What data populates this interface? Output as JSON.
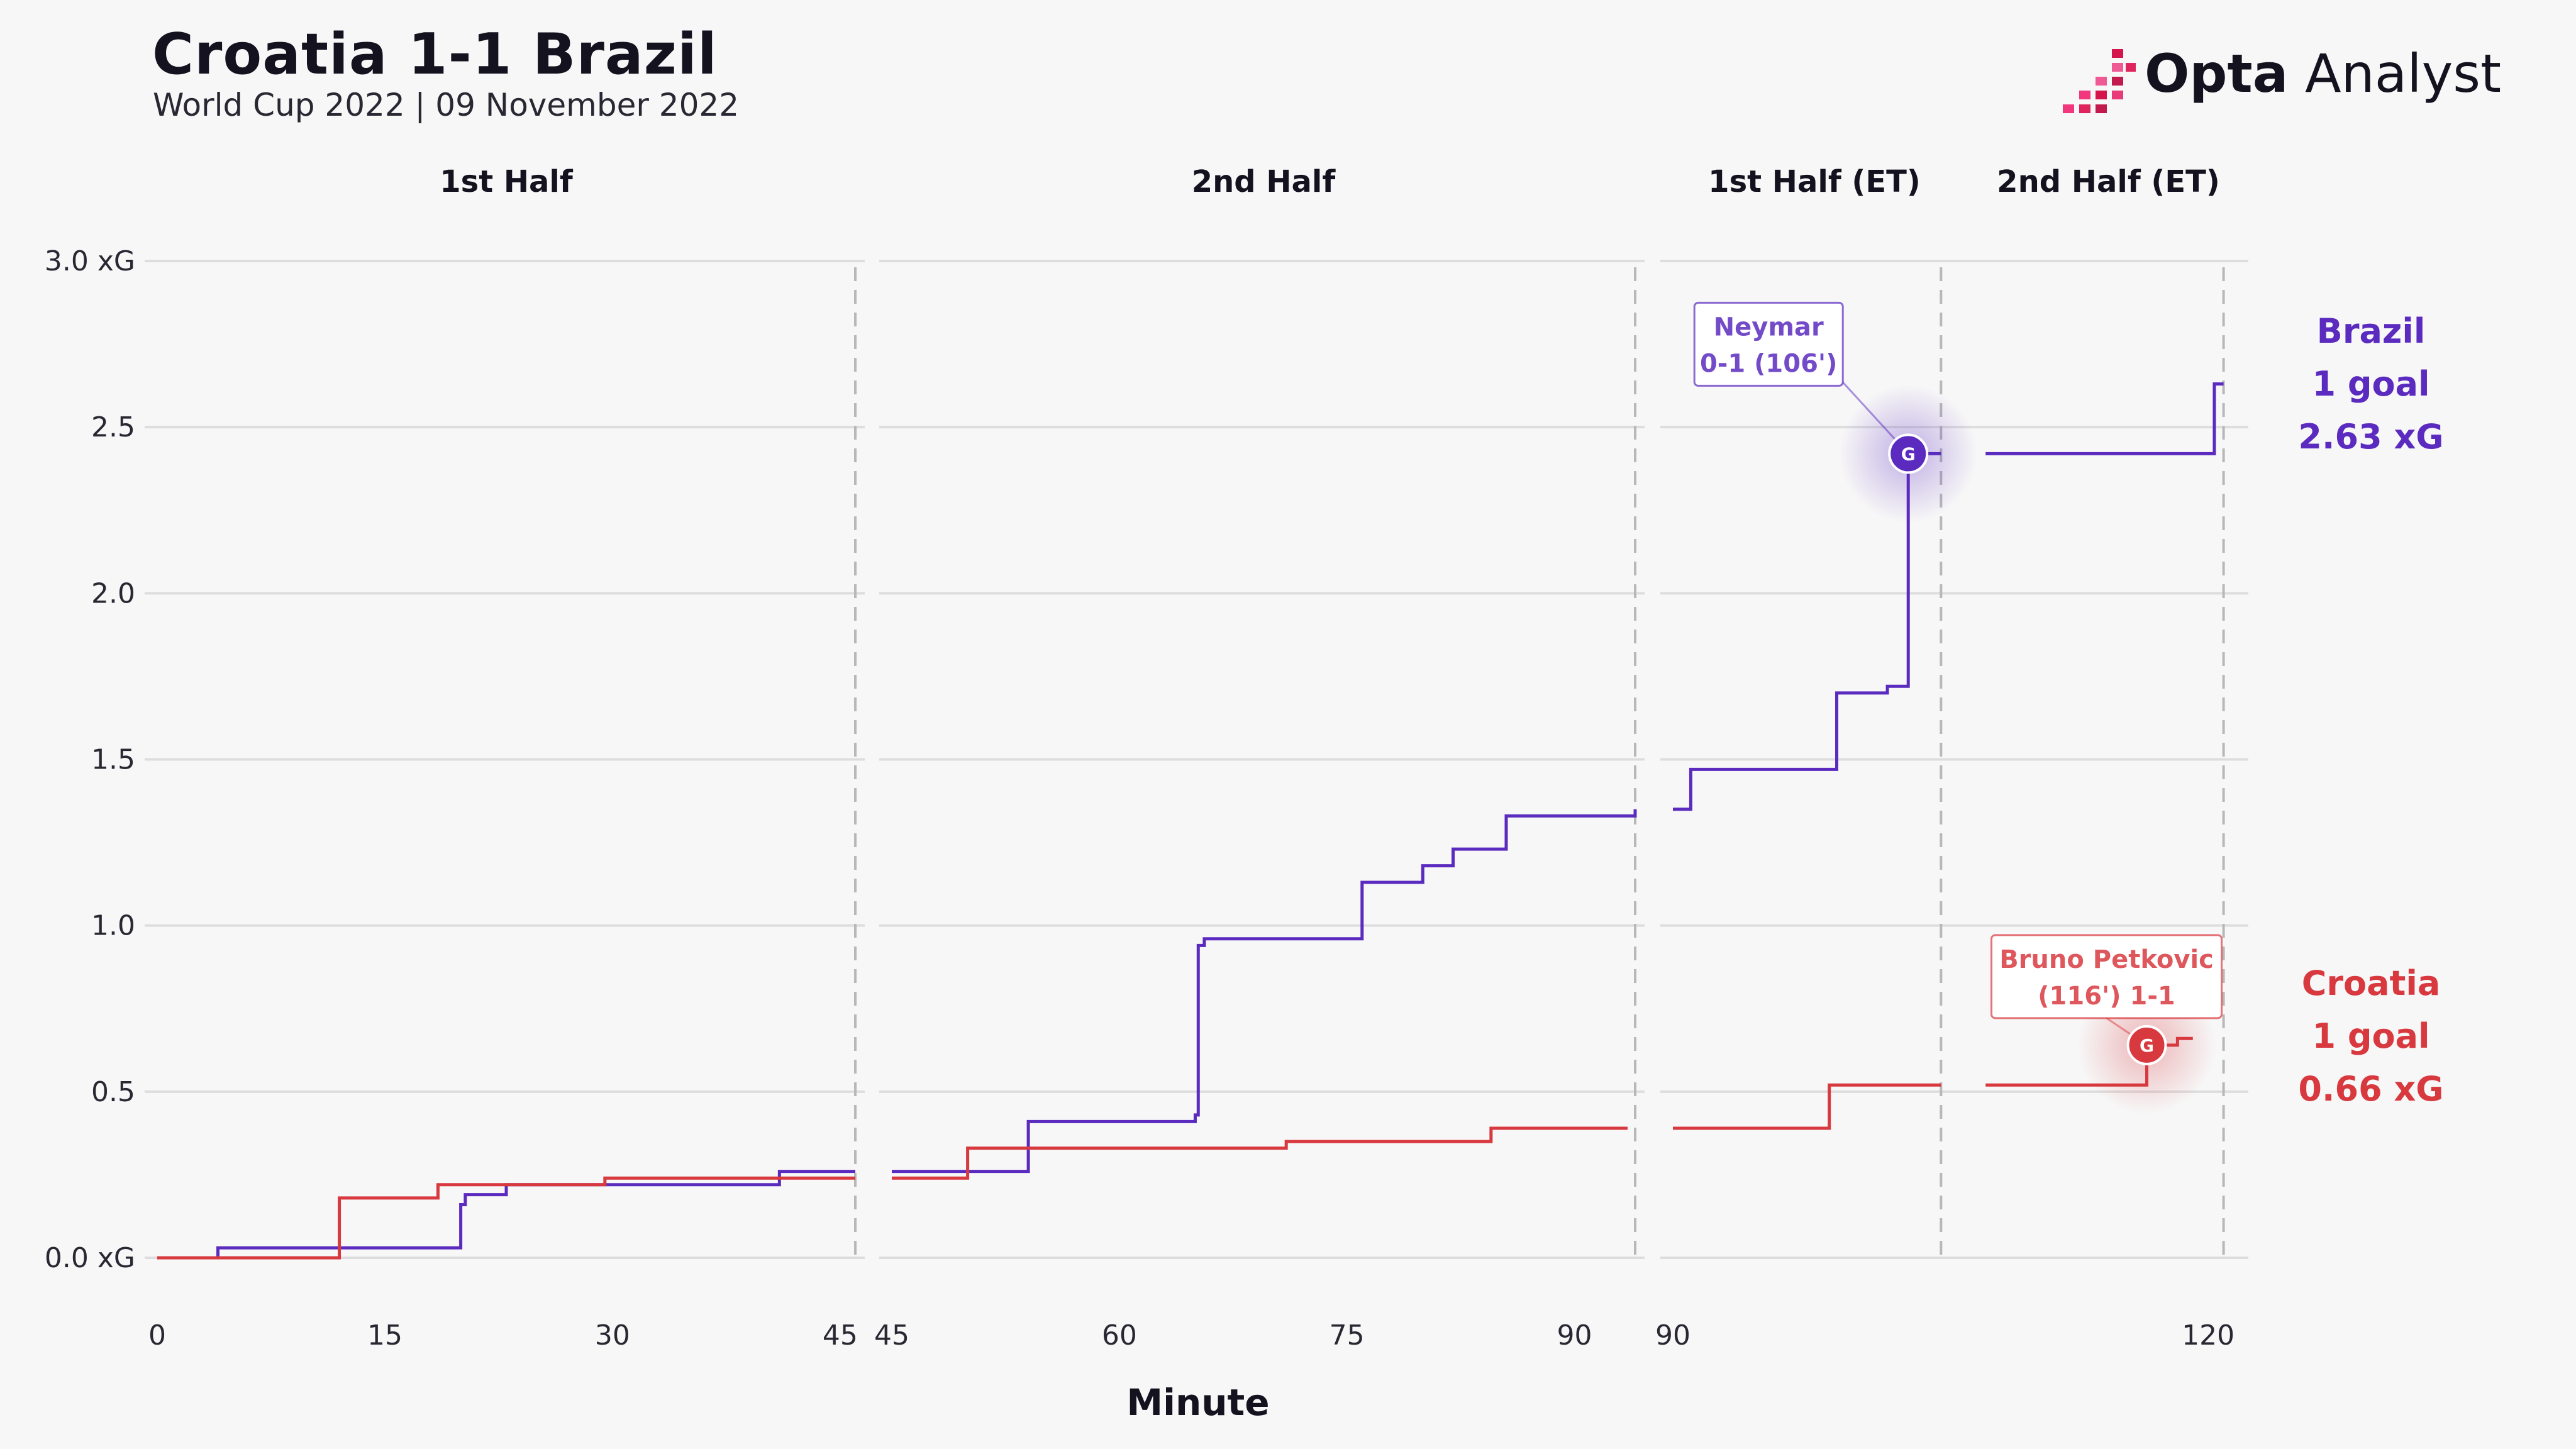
{
  "title": "Croatia 1-1 Brazil",
  "subtitle": "World Cup 2022 | 09 November 2022",
  "logo": {
    "brand": "Opta",
    "product": "Analyst"
  },
  "colors": {
    "brazil": "#5b2bc0",
    "croatia": "#d8393f",
    "grid": "#dddddd",
    "divider": "#b8b8b8"
  },
  "chart_data": {
    "type": "line",
    "subtype": "step",
    "xlabel": "Minute",
    "ylim": [
      0,
      3.0
    ],
    "y_ticks": [
      {
        "value": 0.0,
        "label": "0.0 xG"
      },
      {
        "value": 0.5,
        "label": "0.5"
      },
      {
        "value": 1.0,
        "label": "1.0"
      },
      {
        "value": 1.5,
        "label": "1.5"
      },
      {
        "value": 2.0,
        "label": "2.0"
      },
      {
        "value": 2.5,
        "label": "2.5"
      },
      {
        "value": 3.0,
        "label": "3.0 xG"
      }
    ],
    "panels": [
      {
        "id": "h1",
        "title": "1st Half",
        "xlim": [
          0,
          46
        ],
        "end_minute": 46,
        "ticks": [
          0,
          15,
          30,
          45
        ]
      },
      {
        "id": "h2",
        "title": "2nd Half",
        "xlim": [
          45,
          94
        ],
        "end_minute": 94,
        "ticks": [
          45,
          60,
          75,
          90
        ]
      },
      {
        "id": "et1",
        "title": "1st Half (ET)",
        "xlim": [
          90,
          109
        ],
        "end_minute": 108,
        "ticks": [
          90
        ]
      },
      {
        "id": "et2",
        "title": "2nd Half (ET)",
        "xlim": [
          105,
          122
        ],
        "end_minute": 121,
        "ticks": [
          120
        ]
      }
    ],
    "grid": true,
    "series": [
      {
        "name": "Brazil",
        "color": "#5b2bc0",
        "segments": {
          "h1": [
            [
              0,
              0
            ],
            [
              4,
              0.03
            ],
            [
              20,
              0.16
            ],
            [
              20.3,
              0.19
            ],
            [
              23,
              0.22
            ],
            [
              41,
              0.26
            ],
            [
              46,
              0.26
            ]
          ],
          "h2": [
            [
              45,
              0.26
            ],
            [
              54,
              0.41
            ],
            [
              65,
              0.43
            ],
            [
              65.2,
              0.94
            ],
            [
              65.6,
              0.96
            ],
            [
              76,
              1.13
            ],
            [
              80,
              1.18
            ],
            [
              82,
              1.23
            ],
            [
              85.5,
              1.33
            ],
            [
              94,
              1.35
            ]
          ],
          "et1": [
            [
              90,
              1.35
            ],
            [
              91.2,
              1.47
            ],
            [
              101,
              1.7
            ],
            [
              104.4,
              1.72
            ],
            [
              105.8,
              2.42
            ],
            [
              108,
              2.42
            ]
          ],
          "et2": [
            [
              105.5,
              2.42
            ],
            [
              120.4,
              2.63
            ],
            [
              121,
              2.63
            ]
          ]
        },
        "goal": {
          "panel": "et1",
          "minute": 105.8,
          "xg": 2.42,
          "label": "Neymar",
          "detail": "0-1 (106')"
        },
        "end_label": [
          "Brazil",
          "1 goal",
          "2.63 xG"
        ]
      },
      {
        "name": "Croatia",
        "color": "#d8393f",
        "segments": {
          "h1": [
            [
              0,
              0
            ],
            [
              12,
              0.18
            ],
            [
              18.5,
              0.22
            ],
            [
              29.5,
              0.24
            ],
            [
              46,
              0.24
            ]
          ],
          "h2": [
            [
              45,
              0.24
            ],
            [
              50,
              0.33
            ],
            [
              71,
              0.35
            ],
            [
              84.5,
              0.39
            ],
            [
              93.5,
              0.39
            ]
          ],
          "et1": [
            [
              90,
              0.39
            ],
            [
              100.5,
              0.52
            ],
            [
              108,
              0.52
            ]
          ],
          "et2": [
            [
              105.5,
              0.52
            ],
            [
              116,
              0.64
            ],
            [
              118,
              0.66
            ],
            [
              119,
              0.66
            ]
          ]
        },
        "goal": {
          "panel": "et2",
          "minute": 116,
          "xg": 0.64,
          "label": "Bruno Petkovic",
          "detail": "(116') 1-1"
        },
        "end_label": [
          "Croatia",
          "1 goal",
          "0.66 xG"
        ]
      }
    ]
  }
}
